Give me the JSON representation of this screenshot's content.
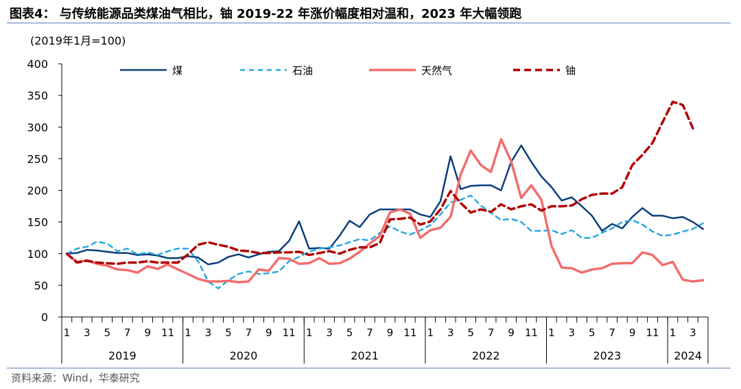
{
  "header": {
    "title": "图表4：  与传统能源品类煤油气相比，铀 2019-22 年涨价幅度相对温和，2023 年大幅领跑",
    "subtitle": "(2019年1月=100)"
  },
  "footer": {
    "source": "资料来源：Wind，华泰研究"
  },
  "chart_data": {
    "type": "line",
    "title": "",
    "xlabel": "",
    "ylabel": "",
    "ylim": [
      0,
      400
    ],
    "yticks": [
      0,
      50,
      100,
      150,
      200,
      250,
      300,
      350,
      400
    ],
    "x_start": "2019-01",
    "month_tick_labels": [
      "1",
      "3",
      "5",
      "7",
      "9",
      "11"
    ],
    "years": [
      "2019",
      "2020",
      "2021",
      "2022",
      "2023",
      "2024"
    ],
    "legend_position": "top",
    "grid": false,
    "series": [
      {
        "name": "煤",
        "color": "#0b3d7a",
        "style": "solid",
        "values": [
          100,
          101,
          106,
          105,
          103,
          101,
          101,
          98,
          99,
          97,
          93,
          93,
          96,
          94,
          83,
          86,
          95,
          99,
          94,
          99,
          103,
          104,
          120,
          151,
          108,
          109,
          108,
          128,
          152,
          142,
          162,
          170,
          170,
          170,
          170,
          162,
          158,
          183,
          254,
          202,
          207,
          208,
          208,
          200,
          245,
          271,
          245,
          222,
          205,
          184,
          189,
          175,
          160,
          136,
          147,
          140,
          158,
          172,
          160,
          160,
          156,
          158,
          150,
          139
        ]
      },
      {
        "name": "石油",
        "color": "#29a8e0",
        "style": "dashed",
        "values": [
          100,
          108,
          111,
          119,
          116,
          104,
          108,
          99,
          102,
          98,
          104,
          108,
          108,
          88,
          56,
          45,
          58,
          68,
          72,
          68,
          69,
          72,
          88,
          95,
          103,
          108,
          110,
          113,
          118,
          123,
          121,
          133,
          143,
          135,
          130,
          137,
          145,
          162,
          181,
          185,
          192,
          176,
          165,
          153,
          155,
          150,
          136,
          136,
          137,
          131,
          137,
          125,
          125,
          133,
          140,
          150,
          153,
          146,
          135,
          128,
          130,
          135,
          139,
          148
        ]
      },
      {
        "name": "天然气",
        "color": "#f26d6d",
        "style": "solid",
        "values": [
          100,
          87,
          89,
          84,
          81,
          75,
          74,
          70,
          80,
          76,
          83,
          75,
          68,
          60,
          56,
          56,
          57,
          55,
          56,
          75,
          73,
          93,
          92,
          84,
          85,
          93,
          84,
          85,
          92,
          103,
          116,
          128,
          165,
          170,
          163,
          125,
          137,
          141,
          158,
          225,
          263,
          240,
          229,
          281,
          246,
          188,
          208,
          185,
          112,
          78,
          77,
          70,
          75,
          77,
          84,
          85,
          85,
          102,
          98,
          82,
          87,
          59,
          56,
          58
        ]
      },
      {
        "name": "铀",
        "color": "#b00000",
        "style": "dashed",
        "values": [
          100,
          86,
          89,
          86,
          85,
          84,
          86,
          86,
          88,
          86,
          86,
          86,
          99,
          114,
          118,
          114,
          111,
          105,
          104,
          101,
          101,
          102,
          102,
          103,
          98,
          101,
          104,
          100,
          106,
          110,
          110,
          117,
          154,
          155,
          157,
          146,
          151,
          170,
          199,
          180,
          165,
          170,
          166,
          178,
          170,
          175,
          178,
          168,
          175,
          175,
          176,
          186,
          193,
          195,
          195,
          205,
          240,
          256,
          275,
          308,
          340,
          335,
          298
        ]
      }
    ]
  }
}
